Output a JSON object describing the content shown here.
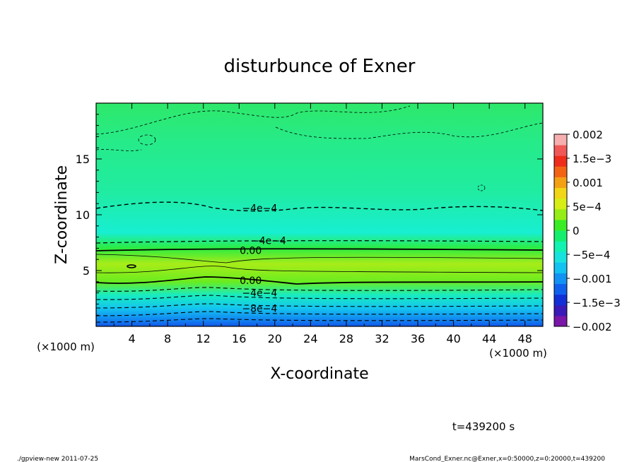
{
  "chart_data": {
    "type": "contour",
    "title": "disturbunce of Exner",
    "xlabel": "X-coordinate",
    "ylabel": "Z-coordinate",
    "x_unit": "(×1000 m)",
    "z_unit": "(×1000 m)",
    "xlim": [
      0,
      50
    ],
    "ylim": [
      0,
      20
    ],
    "x_ticks": [
      "4",
      "8",
      "12",
      "16",
      "20",
      "24",
      "28",
      "32",
      "36",
      "40",
      "44",
      "48"
    ],
    "y_ticks": [
      "5",
      "10",
      "15"
    ],
    "colorbar": {
      "labels": [
        "0.002",
        "1.5e−3",
        "0.001",
        "5e−4",
        "0",
        "−5e−4",
        "−0.001",
        "−1.5e−3",
        "−0.002"
      ],
      "range": [
        -0.002,
        0.002
      ],
      "colors": [
        "#7a16a8",
        "#3a1ab8",
        "#1230d6",
        "#1060ee",
        "#1292f2",
        "#12c2f0",
        "#18e2de",
        "#12f2b0",
        "#14ee6e",
        "#3aec24",
        "#96ec16",
        "#d6ee16",
        "#f0d616",
        "#f4a014",
        "#f26414",
        "#ee2c1c",
        "#f05858",
        "#f6aeae"
      ]
    },
    "contour_labels": [
      {
        "text": "−4e−4",
        "x": 18.3,
        "z": 10.6
      },
      {
        "text": "−4e−4",
        "x": 19.3,
        "z": 7.7
      },
      {
        "text": "0.00",
        "x": 17.3,
        "z": 6.8
      },
      {
        "text": "0.00",
        "x": 17.3,
        "z": 4.1
      },
      {
        "text": "−4e−4",
        "x": 18.3,
        "z": 3.0
      },
      {
        "text": "−8e−4",
        "x": 18.3,
        "z": 1.6
      }
    ],
    "time_label": "t=439200 s",
    "footer_left": "./gpview-new   2011-07-25",
    "footer_right": "MarsCond_Exner.nc@Exner,x=0:50000,z=0:20000,t=439200"
  }
}
